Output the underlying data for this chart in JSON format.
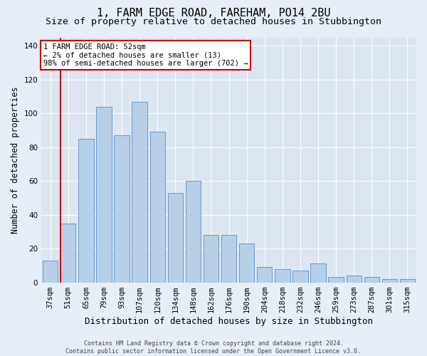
{
  "title": "1, FARM EDGE ROAD, FAREHAM, PO14 2BU",
  "subtitle": "Size of property relative to detached houses in Stubbington",
  "xlabel": "Distribution of detached houses by size in Stubbington",
  "ylabel": "Number of detached properties",
  "footer_line1": "Contains HM Land Registry data © Crown copyright and database right 2024.",
  "footer_line2": "Contains public sector information licensed under the Open Government Licence v3.0.",
  "categories": [
    "37sqm",
    "51sqm",
    "65sqm",
    "79sqm",
    "93sqm",
    "107sqm",
    "120sqm",
    "134sqm",
    "148sqm",
    "162sqm",
    "176sqm",
    "190sqm",
    "204sqm",
    "218sqm",
    "232sqm",
    "246sqm",
    "259sqm",
    "273sqm",
    "287sqm",
    "301sqm",
    "315sqm"
  ],
  "values": [
    13,
    35,
    85,
    104,
    87,
    107,
    89,
    53,
    60,
    28,
    28,
    23,
    9,
    8,
    7,
    11,
    3,
    4,
    3,
    2,
    2
  ],
  "bar_color": "#b8cfe8",
  "bar_edge_color": "#6699cc",
  "highlight_idx": 1,
  "highlight_line_color": "#cc0000",
  "annotation_line1": "1 FARM EDGE ROAD: 52sqm",
  "annotation_line2": "← 2% of detached houses are smaller (13)",
  "annotation_line3": "98% of semi-detached houses are larger (702) →",
  "annotation_box_facecolor": "#ffffff",
  "annotation_box_edgecolor": "#cc0000",
  "ylim": [
    0,
    145
  ],
  "yticks": [
    0,
    20,
    40,
    60,
    80,
    100,
    120,
    140
  ],
  "fig_bg_color": "#e8eef8",
  "axes_bg_color": "#dce6f0",
  "grid_color": "#ffffff",
  "title_fontsize": 11,
  "subtitle_fontsize": 9.5,
  "xlabel_fontsize": 9,
  "ylabel_fontsize": 8.5,
  "tick_fontsize": 7.5,
  "annotation_fontsize": 7.5,
  "footer_fontsize": 6.0
}
